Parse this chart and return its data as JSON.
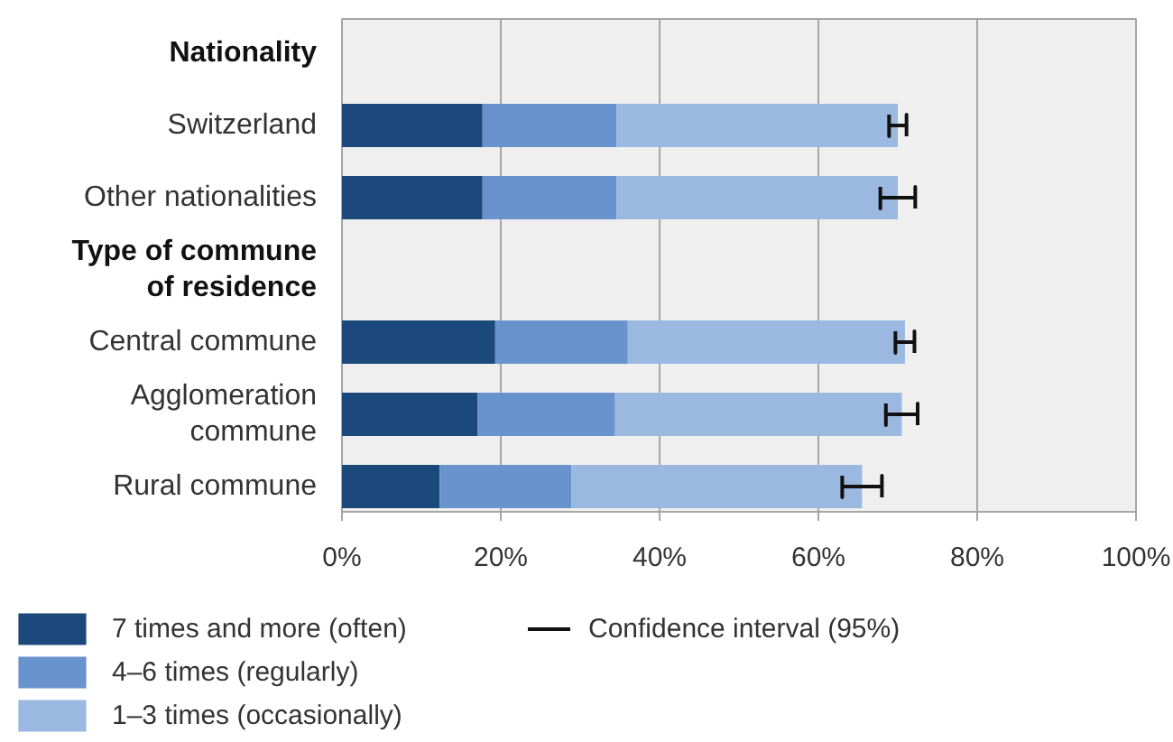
{
  "chart_data": {
    "type": "bar",
    "orientation": "horizontal",
    "stacked": true,
    "categories": [
      "Nationality",
      "Switzerland",
      "Other nationalities",
      "Type of commune\nof residence",
      "Central commune",
      "Agglomeration\ncommune",
      "Rural commune"
    ],
    "series": [
      {
        "name": "7 times and more (often)",
        "color": "#1c497c",
        "values": [
          null,
          17.7,
          17.7,
          null,
          19.3,
          17.1,
          12.3
        ]
      },
      {
        "name": "4–6 times (regularly)",
        "color": "#6993cc",
        "values": [
          null,
          16.9,
          16.9,
          null,
          16.7,
          17.3,
          16.6
        ]
      },
      {
        "name": "1–3 times (occasionally)",
        "color": "#9bb8e0",
        "values": [
          null,
          35.4,
          35.4,
          null,
          34.9,
          36.1,
          36.6
        ],
        "errors": [
          null,
          1.1,
          2.2,
          null,
          1.2,
          2.0,
          2.5
        ]
      }
    ],
    "xlim": [
      0,
      100
    ],
    "xticks": [
      {
        "value": 0,
        "label": "0%"
      },
      {
        "value": 20,
        "label": "20%"
      },
      {
        "value": 40,
        "label": "40%"
      },
      {
        "value": 60,
        "label": "60%"
      },
      {
        "value": 80,
        "label": "80%"
      },
      {
        "value": 100,
        "label": "100%"
      }
    ],
    "grid": "x",
    "legend": "bottom",
    "annotations": [
      "Confidence interval (95%)"
    ]
  }
}
